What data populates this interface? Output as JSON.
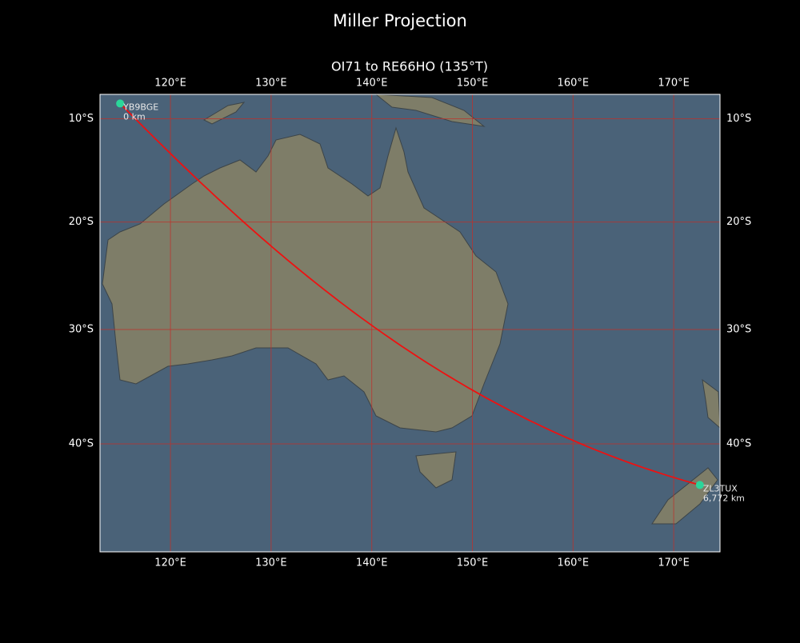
{
  "title": "Miller Projection",
  "subtitle": "OI71 to RE66HO (135°T)",
  "lonlim": [
    113.0,
    174.6
  ],
  "latlim": [
    -7.6,
    -48.7
  ],
  "lonticks": [
    {
      "value": 120,
      "label": "120°E"
    },
    {
      "value": 130,
      "label": "130°E"
    },
    {
      "value": 140,
      "label": "140°E"
    },
    {
      "value": 150,
      "label": "150°E"
    },
    {
      "value": 160,
      "label": "160°E"
    },
    {
      "value": 170,
      "label": "170°E"
    }
  ],
  "latticks": [
    {
      "value": -10,
      "label": "10°S"
    },
    {
      "value": -20,
      "label": "20°S"
    },
    {
      "value": -30,
      "label": "30°S"
    },
    {
      "value": -40,
      "label": "40°S"
    }
  ],
  "stations": [
    {
      "name": "YB9BGE",
      "lon": 115.0,
      "lat": -8.5,
      "distance": "0 km"
    },
    {
      "name": "ZL3TUX",
      "lon": 172.6,
      "lat": -43.4,
      "distance": "6,772 km"
    }
  ],
  "path_color": "#ee1111",
  "station_color": "#2bd69a"
}
